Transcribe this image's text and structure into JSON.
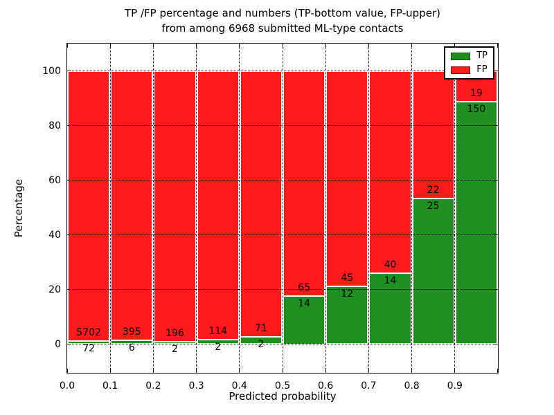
{
  "figure": {
    "title_line1": "TP /FP percentage and numbers (TP-bottom value, FP-upper)",
    "title_line2": "from among 6968 submitted ML-type contacts",
    "background": "#ffffff"
  },
  "chart_data": {
    "type": "bar",
    "stacked": true,
    "normalized_to": "percent",
    "title": "TP /FP percentage and numbers (TP-bottom value, FP-upper) from among 6968 submitted ML-type contacts",
    "total_submitted": 6968,
    "xlabel": "Predicted probability",
    "ylabel": "Percentage",
    "xlim": [
      0.0,
      1.0
    ],
    "ylim": [
      -11,
      110
    ],
    "grid": "dotted",
    "legend_position": "upper right",
    "bin_edges": [
      0.0,
      0.1,
      0.2,
      0.3,
      0.4,
      0.5,
      0.6,
      0.7,
      0.8,
      0.9,
      1.0
    ],
    "x_tick_labels": [
      "0.0",
      "0.1",
      "0.2",
      "0.3",
      "0.4",
      "0.5",
      "0.6",
      "0.7",
      "0.8",
      "0.9"
    ],
    "y_ticks": [
      0,
      20,
      40,
      60,
      80,
      100
    ],
    "y_tick_labels": [
      "0",
      "20",
      "40",
      "60",
      "80",
      "100"
    ],
    "series": [
      {
        "name": "TP",
        "color": "#1f8f1f",
        "position": "bottom",
        "values": [
          72,
          6,
          2,
          2,
          2,
          14,
          12,
          14,
          25,
          150
        ]
      },
      {
        "name": "FP",
        "color": "#fb1b1b",
        "position": "top",
        "values": [
          5702,
          395,
          196,
          114,
          71,
          65,
          45,
          40,
          22,
          19
        ]
      }
    ]
  }
}
